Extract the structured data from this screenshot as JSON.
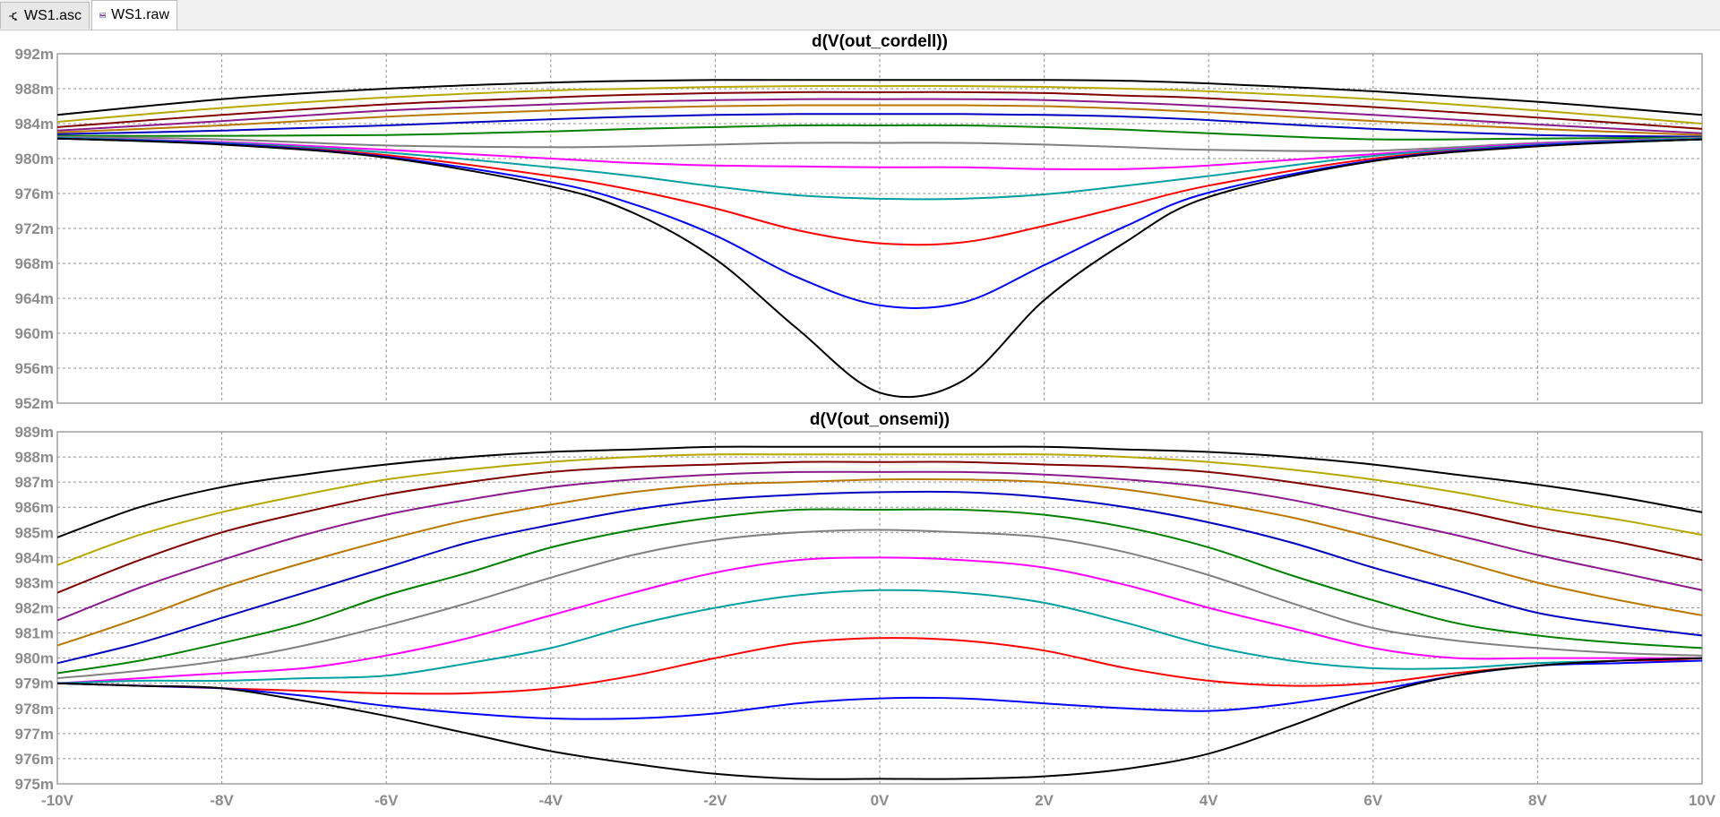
{
  "tabs": [
    {
      "label": "WS1.asc",
      "icon": "schematic-icon",
      "active": false
    },
    {
      "label": "WS1.raw",
      "icon": "waveform-icon",
      "active": true
    }
  ],
  "chart_data": [
    {
      "type": "line",
      "title": "d(V(out_cordell))",
      "xlim": [
        -10,
        10
      ],
      "ylim": [
        952,
        992
      ],
      "y_ticks": [
        "992m",
        "988m",
        "984m",
        "980m",
        "976m",
        "972m",
        "968m",
        "964m",
        "960m",
        "956m",
        "952m"
      ],
      "grid": true,
      "x": [
        -10,
        -8,
        -6,
        -4,
        -3,
        -2,
        -1,
        0,
        1,
        2,
        3,
        4,
        6,
        8,
        10
      ],
      "series": [
        {
          "color": "#000000",
          "values": [
            985.0,
            986.8,
            988.0,
            988.7,
            988.9,
            989.0,
            989.0,
            989.0,
            989.0,
            989.0,
            988.9,
            988.6,
            987.7,
            986.5,
            985.0
          ]
        },
        {
          "color": "#b5a800",
          "values": [
            984.2,
            985.8,
            987.0,
            987.8,
            988.0,
            988.2,
            988.3,
            988.3,
            988.3,
            988.2,
            988.0,
            987.7,
            986.8,
            985.5,
            984.0
          ]
        },
        {
          "color": "#800000",
          "values": [
            983.6,
            985.0,
            986.2,
            987.0,
            987.3,
            987.5,
            987.6,
            987.6,
            987.6,
            987.5,
            987.2,
            986.9,
            985.9,
            984.7,
            983.4
          ]
        },
        {
          "color": "#8b1a8b",
          "values": [
            983.2,
            984.3,
            985.5,
            986.2,
            986.5,
            986.7,
            986.8,
            986.8,
            986.8,
            986.7,
            986.4,
            986.0,
            985.0,
            983.9,
            982.9
          ]
        },
        {
          "color": "#b87800",
          "values": [
            983.0,
            983.8,
            984.8,
            985.5,
            985.8,
            986.0,
            986.1,
            986.1,
            986.1,
            986.0,
            985.7,
            985.3,
            984.3,
            983.4,
            982.7
          ]
        },
        {
          "color": "#0000c0",
          "values": [
            982.8,
            983.2,
            983.8,
            984.5,
            984.8,
            985.0,
            985.1,
            985.1,
            985.1,
            985.0,
            984.8,
            984.4,
            983.4,
            982.7,
            982.5
          ]
        },
        {
          "color": "#008000",
          "values": [
            982.6,
            982.6,
            982.7,
            983.1,
            983.4,
            983.6,
            983.8,
            983.8,
            983.8,
            983.6,
            983.3,
            982.9,
            982.2,
            982.3,
            982.4
          ]
        },
        {
          "color": "#808080",
          "values": [
            982.5,
            982.2,
            981.5,
            981.3,
            981.4,
            981.6,
            981.8,
            981.8,
            981.8,
            981.6,
            981.3,
            981.0,
            980.9,
            981.8,
            982.4
          ]
        },
        {
          "color": "#ff00ff",
          "values": [
            982.4,
            981.9,
            981.0,
            980.0,
            979.5,
            979.2,
            979.1,
            979.0,
            979.0,
            978.8,
            978.8,
            979.2,
            980.5,
            981.7,
            982.3
          ]
        },
        {
          "color": "#00a0a0",
          "values": [
            982.4,
            981.8,
            980.7,
            979.0,
            978.0,
            976.8,
            975.8,
            975.4,
            975.4,
            975.9,
            976.9,
            978.0,
            980.3,
            981.6,
            982.3
          ]
        },
        {
          "color": "#ff0000",
          "values": [
            982.3,
            981.7,
            980.4,
            978.0,
            976.4,
            974.3,
            971.8,
            970.3,
            970.4,
            972.3,
            974.6,
            976.9,
            980.0,
            981.5,
            982.2
          ]
        },
        {
          "color": "#0000ff",
          "values": [
            982.3,
            981.7,
            980.2,
            977.3,
            974.8,
            971.2,
            966.4,
            963.2,
            963.5,
            967.8,
            972.3,
            976.1,
            979.8,
            981.5,
            982.2
          ]
        },
        {
          "color": "#000000",
          "values": [
            982.3,
            981.6,
            980.1,
            976.8,
            973.8,
            968.5,
            960.5,
            953.2,
            954.5,
            963.8,
            970.5,
            975.6,
            979.7,
            981.4,
            982.2
          ]
        }
      ]
    },
    {
      "type": "line",
      "title": "d(V(out_onsemi))",
      "xlim": [
        -10,
        10
      ],
      "ylim": [
        975,
        989
      ],
      "y_ticks": [
        "989m",
        "988m",
        "987m",
        "986m",
        "985m",
        "984m",
        "983m",
        "982m",
        "981m",
        "980m",
        "979m",
        "978m",
        "977m",
        "976m",
        "975m"
      ],
      "x_ticks": [
        "-10V",
        "-8V",
        "-6V",
        "-4V",
        "-2V",
        "0V",
        "2V",
        "4V",
        "6V",
        "8V",
        "10V"
      ],
      "grid": true,
      "x": [
        -10,
        -9,
        -8,
        -7,
        -6,
        -5,
        -4,
        -3,
        -2,
        -1,
        0,
        1,
        2,
        3,
        4,
        5,
        6,
        7,
        8,
        9,
        10
      ],
      "series": [
        {
          "color": "#000000",
          "values": [
            984.8,
            986.0,
            986.8,
            987.3,
            987.7,
            988.0,
            988.2,
            988.3,
            988.4,
            988.4,
            988.4,
            988.4,
            988.4,
            988.3,
            988.2,
            988.0,
            987.7,
            987.3,
            986.9,
            986.4,
            985.8
          ]
        },
        {
          "color": "#b5a800",
          "values": [
            983.7,
            984.9,
            985.8,
            986.5,
            987.1,
            987.5,
            987.8,
            988.0,
            988.1,
            988.1,
            988.1,
            988.1,
            988.1,
            988.0,
            987.8,
            987.5,
            987.1,
            986.6,
            986.0,
            985.5,
            984.9
          ]
        },
        {
          "color": "#800000",
          "values": [
            982.6,
            983.9,
            985.0,
            985.8,
            986.5,
            987.0,
            987.4,
            987.6,
            987.7,
            987.8,
            987.8,
            987.8,
            987.7,
            987.6,
            987.4,
            987.0,
            986.5,
            985.9,
            985.2,
            984.6,
            983.9
          ]
        },
        {
          "color": "#8b1a8b",
          "values": [
            981.5,
            982.8,
            983.9,
            984.9,
            985.7,
            986.3,
            986.8,
            987.1,
            987.3,
            987.4,
            987.4,
            987.4,
            987.3,
            987.1,
            986.8,
            986.3,
            985.6,
            984.9,
            984.1,
            983.4,
            982.7
          ]
        },
        {
          "color": "#b87800",
          "values": [
            980.5,
            981.6,
            982.8,
            983.8,
            984.7,
            985.5,
            986.1,
            986.6,
            986.9,
            987.0,
            987.1,
            987.1,
            987.0,
            986.7,
            986.2,
            985.6,
            984.8,
            983.9,
            983.0,
            982.3,
            981.7
          ]
        },
        {
          "color": "#0000c0",
          "values": [
            979.8,
            980.6,
            981.6,
            982.6,
            983.6,
            984.6,
            985.3,
            985.9,
            986.3,
            986.5,
            986.6,
            986.6,
            986.4,
            986.0,
            985.4,
            984.6,
            983.6,
            982.7,
            981.8,
            981.3,
            980.9
          ]
        },
        {
          "color": "#008000",
          "values": [
            979.4,
            979.9,
            980.6,
            981.4,
            982.5,
            983.4,
            984.4,
            985.1,
            985.6,
            985.9,
            985.9,
            985.9,
            985.7,
            985.2,
            984.4,
            983.3,
            982.3,
            981.4,
            980.9,
            980.6,
            980.4
          ]
        },
        {
          "color": "#808080",
          "values": [
            979.2,
            979.5,
            979.9,
            980.5,
            981.3,
            982.2,
            983.2,
            984.1,
            984.7,
            985.0,
            985.1,
            985.0,
            984.8,
            984.2,
            983.3,
            982.2,
            981.2,
            980.7,
            980.4,
            980.2,
            980.1
          ]
        },
        {
          "color": "#ff00ff",
          "values": [
            979.0,
            979.2,
            979.4,
            979.6,
            980.1,
            980.8,
            981.7,
            982.6,
            983.4,
            983.9,
            984.0,
            983.9,
            983.6,
            982.9,
            982.0,
            981.2,
            980.4,
            980.0,
            980.0,
            980.0,
            980.0
          ]
        },
        {
          "color": "#00a0a0",
          "values": [
            979.0,
            979.1,
            979.1,
            979.2,
            979.3,
            979.8,
            980.4,
            981.3,
            982.0,
            982.5,
            982.7,
            982.6,
            982.2,
            981.4,
            980.5,
            979.9,
            979.6,
            979.6,
            979.8,
            979.9,
            980.0
          ]
        },
        {
          "color": "#ff0000",
          "values": [
            979.0,
            978.9,
            978.8,
            978.7,
            978.6,
            978.6,
            978.8,
            979.3,
            980.0,
            980.6,
            980.8,
            980.7,
            980.3,
            979.6,
            979.1,
            978.9,
            979.0,
            979.4,
            979.7,
            979.9,
            979.9
          ]
        },
        {
          "color": "#0000ff",
          "values": [
            979.0,
            978.9,
            978.8,
            978.5,
            978.1,
            977.8,
            977.6,
            977.6,
            977.8,
            978.2,
            978.4,
            978.4,
            978.2,
            978.0,
            977.9,
            978.2,
            978.7,
            979.3,
            979.7,
            979.8,
            979.9
          ]
        },
        {
          "color": "#000000",
          "values": [
            979.0,
            978.9,
            978.8,
            978.3,
            977.7,
            977.0,
            976.3,
            975.8,
            975.4,
            975.2,
            975.2,
            975.2,
            975.3,
            975.6,
            976.2,
            977.3,
            978.5,
            979.3,
            979.7,
            979.9,
            980.0
          ]
        }
      ]
    }
  ]
}
